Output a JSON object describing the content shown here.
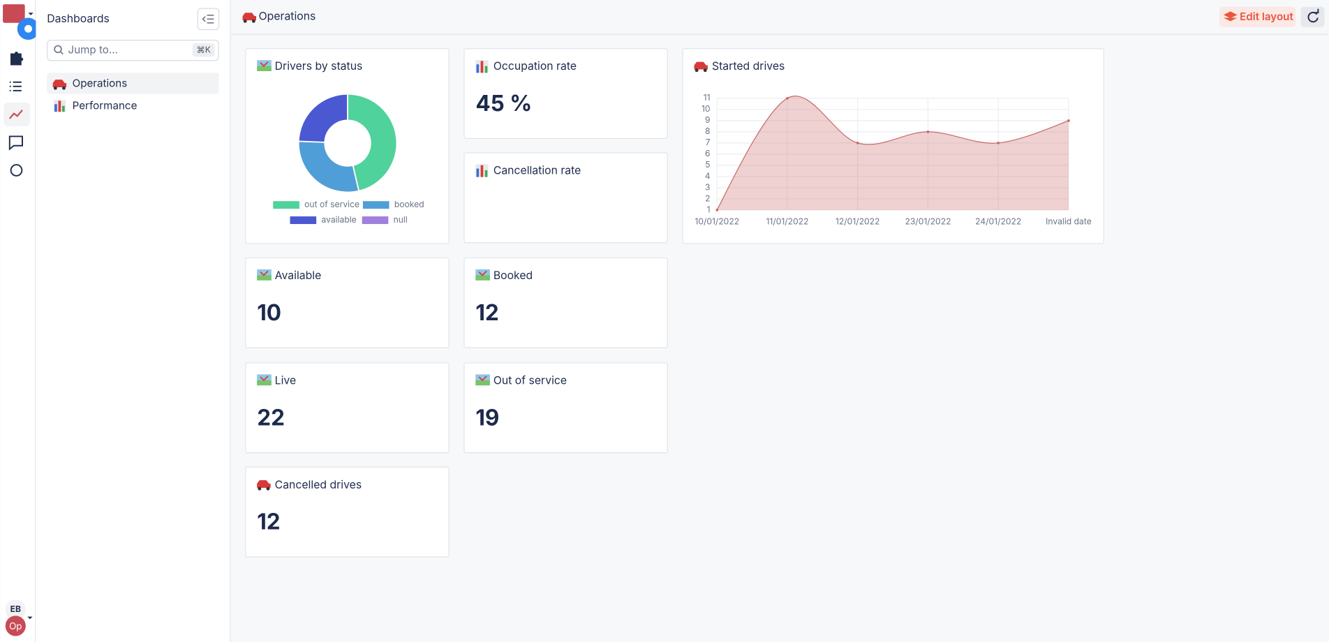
{
  "sidebar": {
    "title": "Dashboards",
    "search_placeholder": "Jump to...",
    "search_shortcut": "⌘K",
    "items": [
      "Operations",
      "Performance"
    ],
    "user_initials": "EB",
    "workspace_initials": "Op"
  },
  "header": {
    "title": "Operations",
    "edit_button": "Edit layout"
  },
  "chart_data": [
    {
      "type": "pie",
      "title": "Drivers by status",
      "categories": [
        "out of service",
        "booked",
        "available",
        "null"
      ],
      "values": [
        19,
        12,
        10,
        0
      ],
      "colors": [
        "#4fd29b",
        "#509ed8",
        "#4a59d1",
        "#a17fdc"
      ],
      "donut": true,
      "legend": "bottom"
    },
    {
      "type": "line",
      "title": "Started drives",
      "x": [
        "10/01/2022",
        "11/01/2022",
        "12/01/2022",
        "23/01/2022",
        "24/01/2022",
        "Invalid date"
      ],
      "values": [
        1,
        11,
        7,
        8,
        7,
        9
      ],
      "color": "#c96868",
      "area": true,
      "ylim": [
        1,
        11
      ],
      "yticks": [
        1,
        2,
        3,
        4,
        5,
        6,
        7,
        8,
        9,
        10,
        11
      ],
      "grid": true
    }
  ],
  "widgets": [
    {
      "title": "Occupation rate",
      "value": "45 %"
    },
    {
      "title": "Cancellation rate"
    },
    {
      "title": "Available",
      "value": 10
    },
    {
      "title": "Booked",
      "value": 12
    },
    {
      "title": "Live",
      "value": 22
    },
    {
      "title": "Out of service",
      "value": 19
    },
    {
      "title": "Cancelled drives",
      "value": 12
    }
  ]
}
